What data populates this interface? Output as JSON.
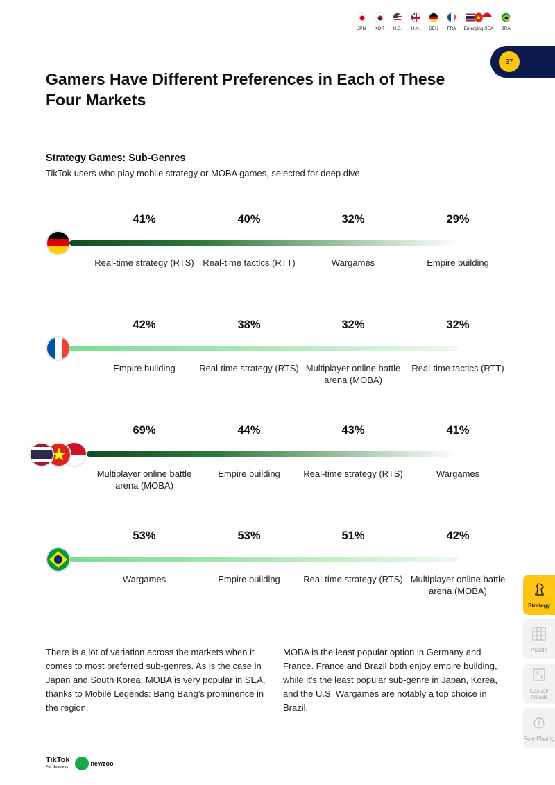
{
  "country_nav": [
    {
      "label": "JPN",
      "icon": "japan-flag-icon"
    },
    {
      "label": "KOR",
      "icon": "korea-flag-icon"
    },
    {
      "label": "U.S.",
      "icon": "usa-flag-icon"
    },
    {
      "label": "U.K.",
      "icon": "uk-flag-icon"
    },
    {
      "label": "DEU",
      "icon": "germany-flag-icon"
    },
    {
      "label": "FRA",
      "icon": "france-flag-icon"
    },
    {
      "label": "Emerging SEA",
      "icon": "sea-flags-icon"
    },
    {
      "label": "BRA",
      "icon": "brazil-flag-icon"
    }
  ],
  "page_number": "37",
  "title": "Gamers Have Different Preferences in Each of These Four Markets",
  "section_title": "Strategy Games: Sub-Genres",
  "section_subtitle": "TikTok users who play mobile strategy or MOBA games, selected for deep dive",
  "markets": [
    {
      "flag": "germany-flag-icon",
      "bar_style": "dark",
      "items": [
        {
          "pct": "41%",
          "label": "Real-time strategy (RTS)"
        },
        {
          "pct": "40%",
          "label": "Real-time tactics (RTT)"
        },
        {
          "pct": "32%",
          "label": "Wargames"
        },
        {
          "pct": "29%",
          "label": "Empire building"
        }
      ]
    },
    {
      "flag": "france-flag-icon",
      "bar_style": "light",
      "items": [
        {
          "pct": "42%",
          "label": "Empire building"
        },
        {
          "pct": "38%",
          "label": "Real-time strategy (RTS)"
        },
        {
          "pct": "32%",
          "label": "Multiplayer online battle arena (MOBA)"
        },
        {
          "pct": "32%",
          "label": "Real-time tactics (RTT)"
        }
      ]
    },
    {
      "flag": "sea-flags-icon",
      "bar_style": "dark",
      "items": [
        {
          "pct": "69%",
          "label": "Multiplayer online battle arena (MOBA)"
        },
        {
          "pct": "44%",
          "label": "Empire building"
        },
        {
          "pct": "43%",
          "label": "Real-time strategy (RTS)"
        },
        {
          "pct": "41%",
          "label": "Wargames"
        }
      ]
    },
    {
      "flag": "brazil-flag-icon",
      "bar_style": "light",
      "items": [
        {
          "pct": "53%",
          "label": "Wargames"
        },
        {
          "pct": "53%",
          "label": "Empire building"
        },
        {
          "pct": "51%",
          "label": "Real-time strategy (RTS)"
        },
        {
          "pct": "42%",
          "label": "Multiplayer online battle arena (MOBA)"
        }
      ]
    }
  ],
  "body_left": "There is a lot of variation across the markets when it comes to most preferred sub-genres. As is the case in Japan and South Korea, MOBA is very popular in SEA, thanks to Mobile Legends: Bang Bang’s prominence in the region.",
  "body_right": "MOBA is the least popular option in Germany and France. France and Brazil both enjoy empire building, while it’s the least popular sub-genre in Japan, Korea, and the U.S. Wargames are notably a top choice in Brazil.",
  "side_tabs": [
    {
      "label": "Strategy",
      "icon": "chess-knight-icon",
      "active": true
    },
    {
      "label": "Puzzle",
      "icon": "puzzle-grid-icon",
      "active": false
    },
    {
      "label": "Casual/ Arcade",
      "icon": "arcade-icon",
      "active": false
    },
    {
      "label": "Role Playing",
      "icon": "role-playing-icon",
      "active": false
    }
  ],
  "footer": {
    "tiktok": "TikTok",
    "tiktok_sub": "For Business",
    "newzoo": "newzoo"
  },
  "colors": {
    "accent_yellow": "#ffc515",
    "navy": "#0d1a4e",
    "bar_dark": "#0f4d24",
    "bar_light": "#7fdc91"
  }
}
